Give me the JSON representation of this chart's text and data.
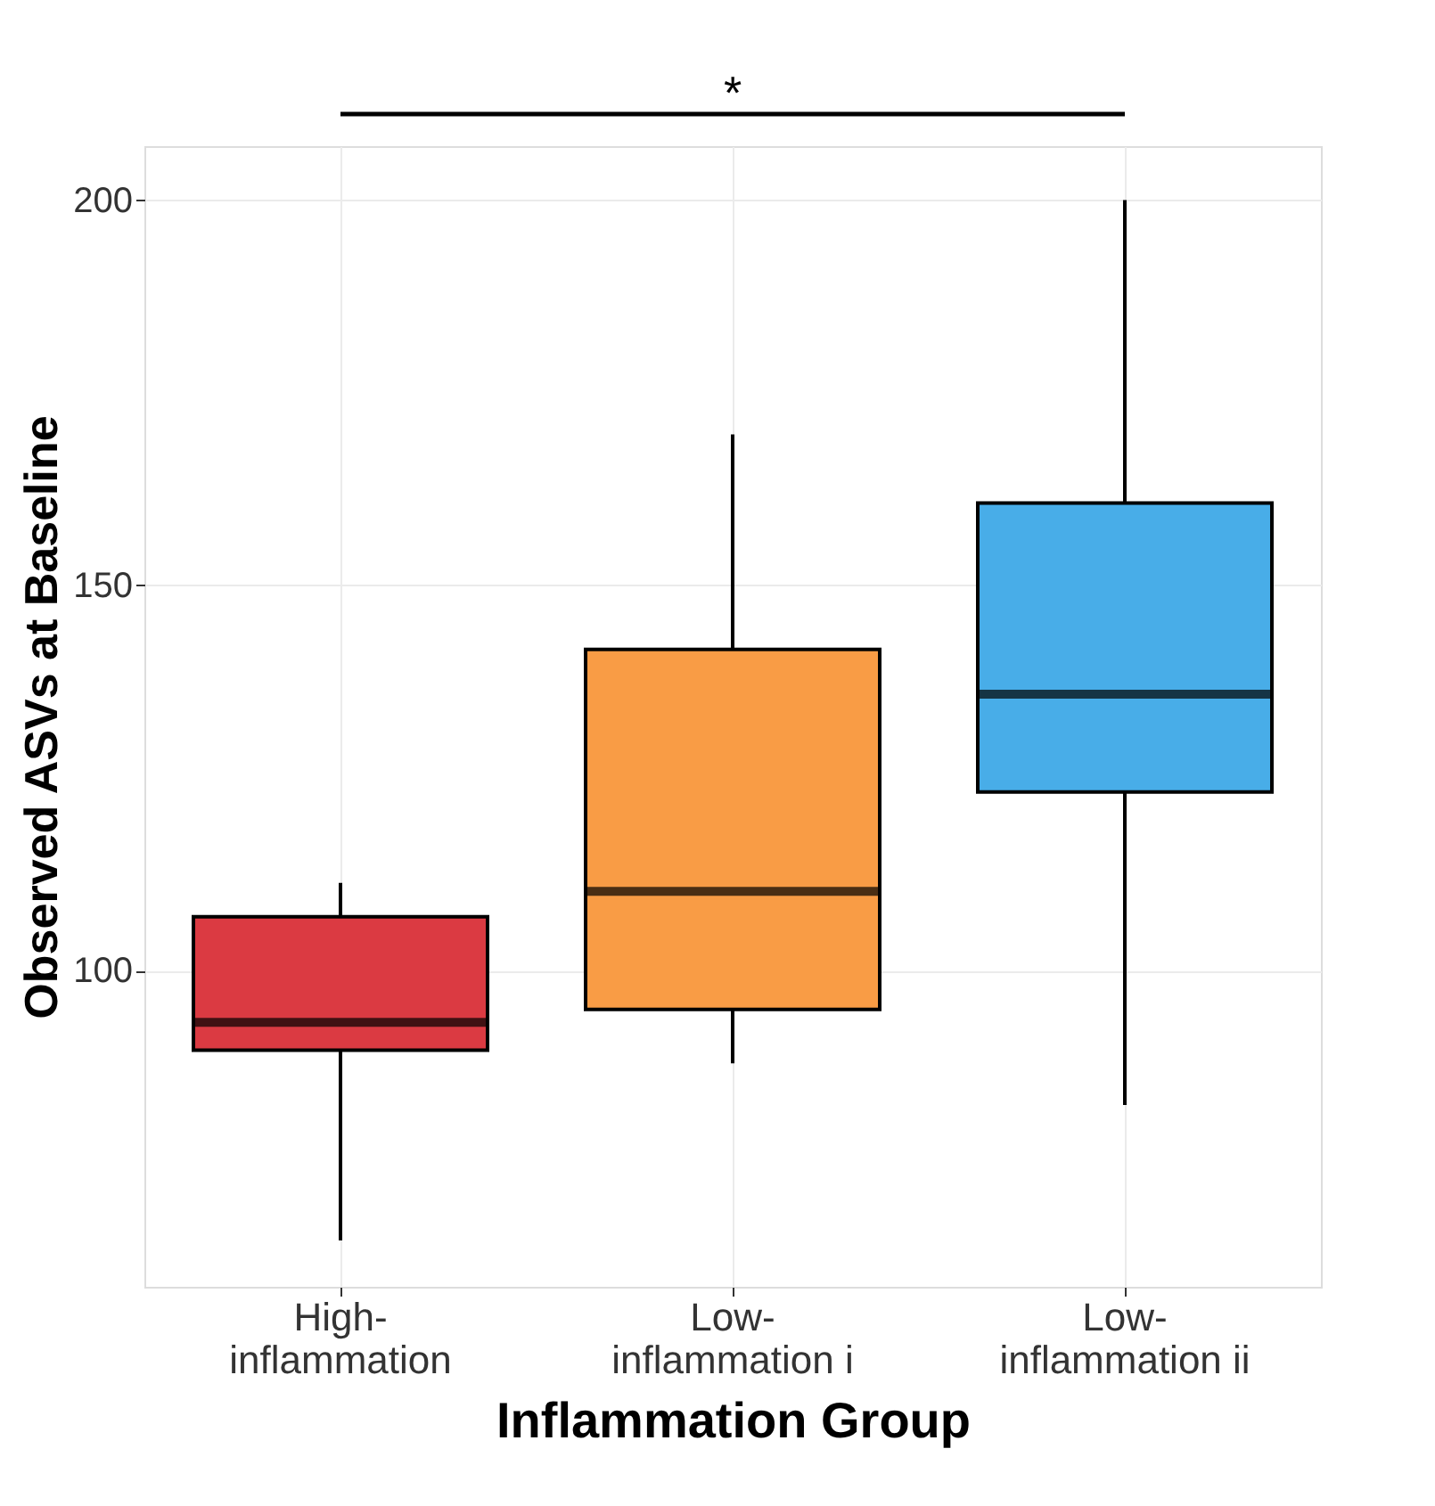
{
  "chart_data": {
    "type": "box",
    "xlabel": "Inflammation Group",
    "ylabel": "Observed ASVs at Baseline",
    "categories": [
      "High-\ninflammation",
      "Low-\ninflammation i",
      "Low-\ninflammation ii"
    ],
    "boxes": [
      {
        "low": 65,
        "q1": 89.7,
        "median": 93.3,
        "q3": 107,
        "high": 111.4
      },
      {
        "low": 88,
        "q1": 95,
        "median": 110.3,
        "q3": 141.7,
        "high": 169.6
      },
      {
        "low": 82.6,
        "q1": 123.2,
        "median": 135.9,
        "q3": 160.7,
        "high": 200
      }
    ],
    "colors": [
      "#db3a42",
      "#f99c45",
      "#48ade8"
    ],
    "ylim": [
      59,
      207
    ],
    "yticks": [
      100,
      150,
      200
    ],
    "grid": true,
    "legend": false,
    "annotations": [
      "*"
    ]
  }
}
